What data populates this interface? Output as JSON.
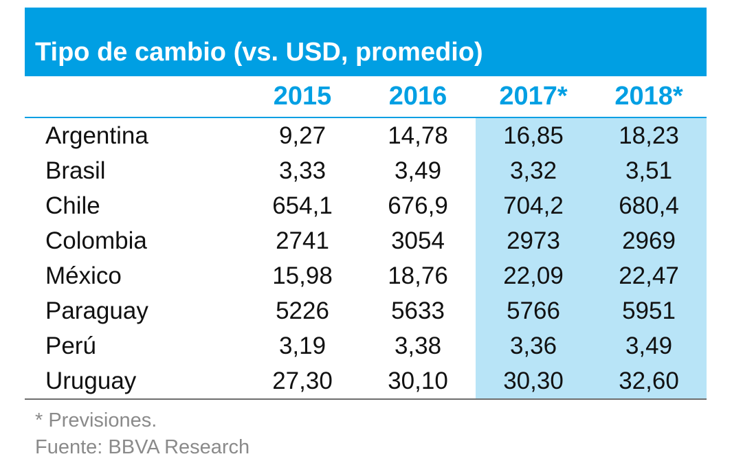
{
  "title": "Tipo de cambio (vs. USD, promedio)",
  "columns": [
    "",
    "2015",
    "2016",
    "2017*",
    "2018*"
  ],
  "rows": [
    {
      "country": "Argentina",
      "values": [
        "9,27",
        "14,78",
        "16,85",
        "18,23"
      ]
    },
    {
      "country": "Brasil",
      "values": [
        "3,33",
        "3,49",
        "3,32",
        "3,51"
      ]
    },
    {
      "country": "Chile",
      "values": [
        "654,1",
        "676,9",
        "704,2",
        "680,4"
      ]
    },
    {
      "country": "Colombia",
      "values": [
        "2741",
        "3054",
        "2973",
        "2969"
      ]
    },
    {
      "country": "México",
      "values": [
        "15,98",
        "18,76",
        "22,09",
        "22,47"
      ]
    },
    {
      "country": "Paraguay",
      "values": [
        "5226",
        "5633",
        "5766",
        "5951"
      ]
    },
    {
      "country": "Perú",
      "values": [
        "3,19",
        "3,38",
        "3,36",
        "3,49"
      ]
    },
    {
      "country": "Uruguay",
      "values": [
        "27,30",
        "30,10",
        "30,30",
        "32,60"
      ]
    }
  ],
  "notes": {
    "forecast": "* Previsiones.",
    "source": "Fuente: BBVA Research"
  },
  "colors": {
    "accent": "#009fe3",
    "forecast_fill": "#b8e4f7",
    "note_text": "#8a8a8a"
  }
}
